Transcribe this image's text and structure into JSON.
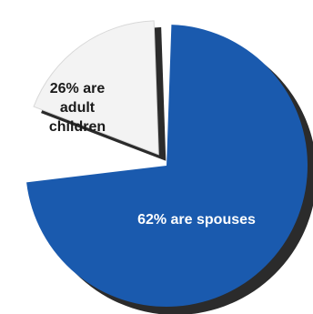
{
  "chart_data": {
    "type": "pie",
    "slices": [
      {
        "label_lines": [
          "62% are spouses"
        ],
        "value": 62,
        "color": "#1a5aae",
        "text_color": "#ffffff"
      },
      {
        "label_lines": [
          "26% are",
          "adult",
          "children"
        ],
        "value": 26,
        "color": "#f3f3f3",
        "text_color": "#1a1a1a",
        "exploded": true
      }
    ],
    "shadow_color": "#2b2b2b"
  }
}
